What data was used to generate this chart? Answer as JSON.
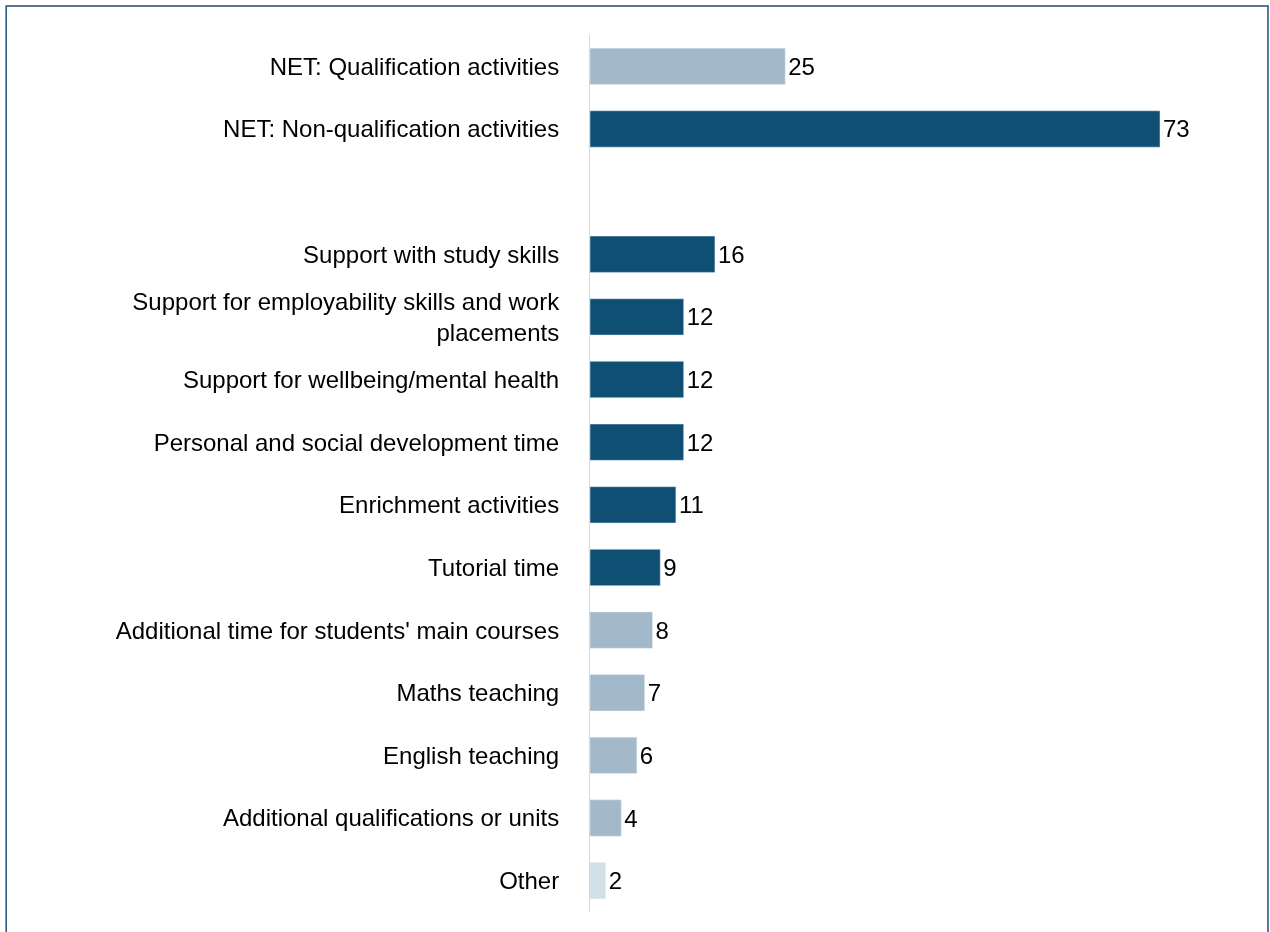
{
  "chart_data": {
    "type": "bar",
    "orientation": "horizontal",
    "data_labels": true,
    "legend": false,
    "categories": [
      "NET: Qualification activities",
      "NET: Non-qualification activities",
      null,
      "Support with study skills",
      "Support for employability skills and work placements",
      "Support for wellbeing/mental health",
      "Personal and social development time",
      "Enrichment activities",
      "Tutorial time",
      "Additional time for students' main courses",
      "Maths teaching",
      "English teaching",
      "Additional qualifications or units",
      "Other"
    ],
    "values": [
      25,
      73,
      null,
      16,
      12,
      12,
      12,
      11,
      9,
      8,
      7,
      6,
      4,
      2
    ],
    "colors": [
      "#a3b8c8",
      "#104f74",
      null,
      "#104f74",
      "#104f74",
      "#104f74",
      "#104f74",
      "#104f74",
      "#104f74",
      "#a3b8c8",
      "#a3b8c8",
      "#a3b8c8",
      "#a3b8c8",
      "#d3dfe7"
    ]
  }
}
